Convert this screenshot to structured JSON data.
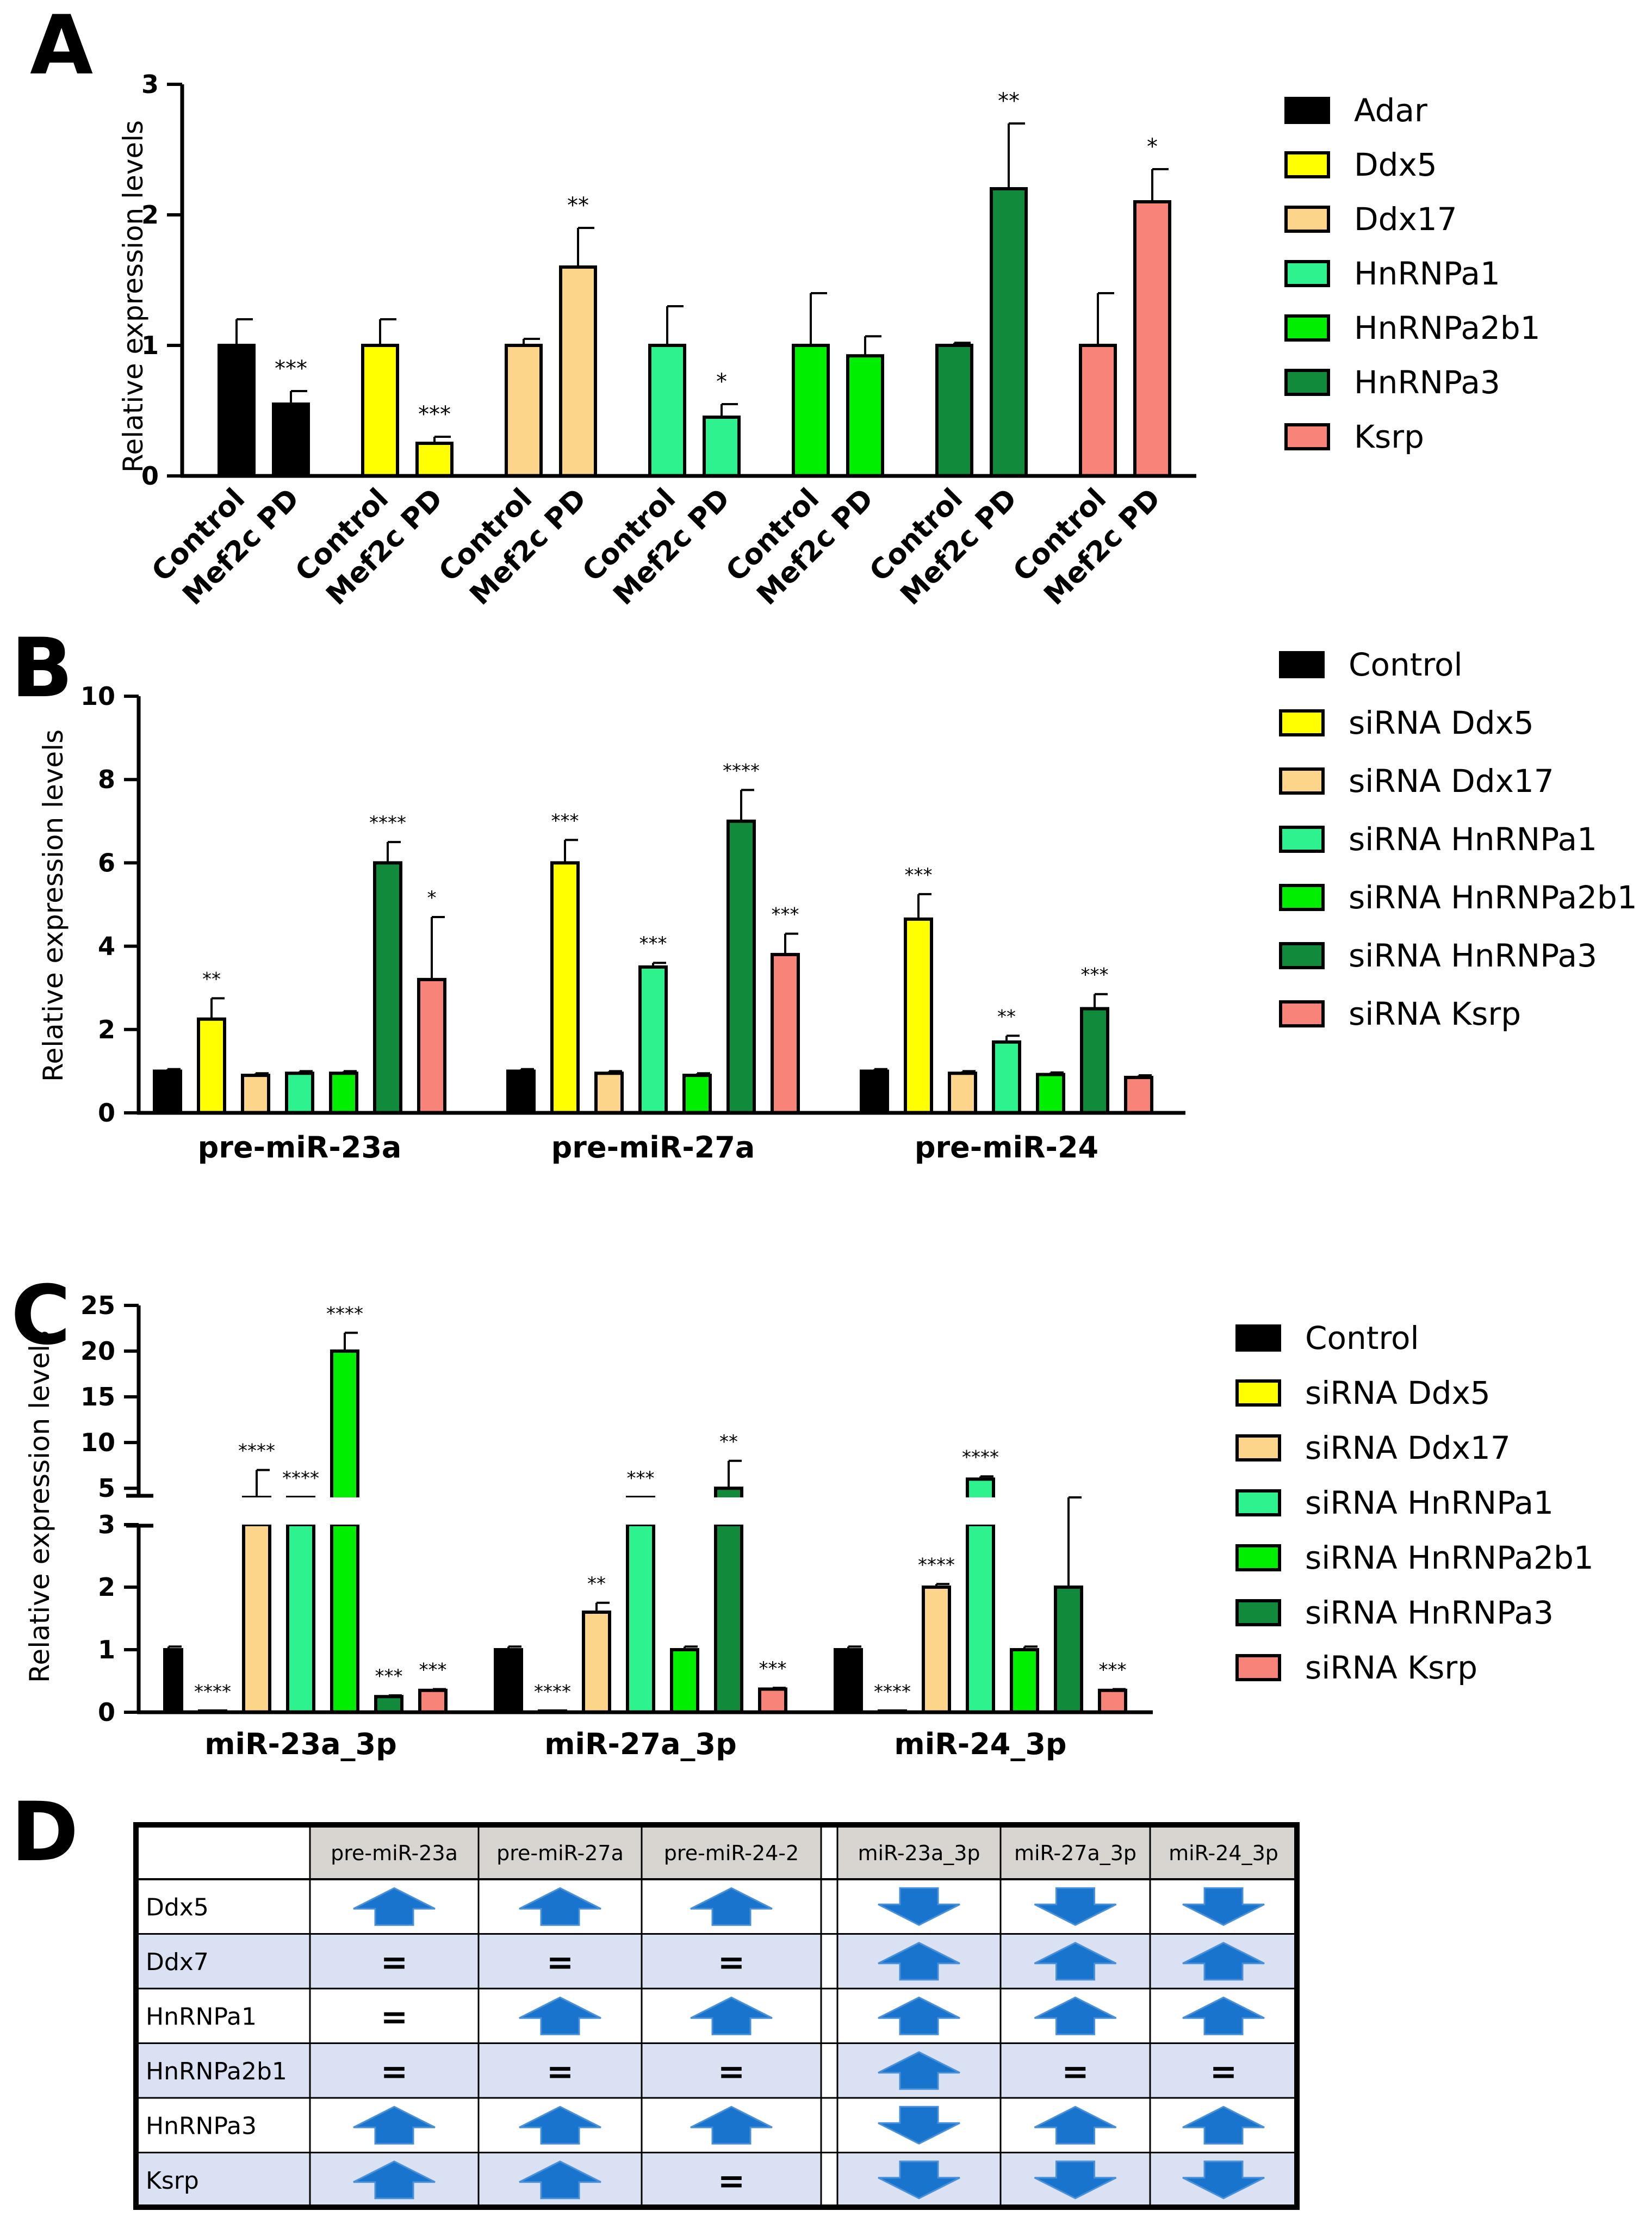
{
  "panels": {
    "a": "A",
    "b": "B",
    "c": "C",
    "d": "D"
  },
  "colors": {
    "Adar": "#000000",
    "Ddx5": "#ffff00",
    "Ddx17": "#fcd48a",
    "HnRNPa1": "#2ef28e",
    "HnRNPa2b1": "#00ee00",
    "HnRNPa3": "#118a3c",
    "Ksrp": "#f88379",
    "table_head": "#d8d4d0",
    "table_alt": "#d9e1f2",
    "arrow": "#1874cd"
  },
  "chart_data": [
    {
      "type": "bar",
      "panel": "A",
      "ylabel": "Relative expression levels",
      "ylim": [
        0,
        3
      ],
      "yticks": [
        "0",
        "1",
        "2",
        "3"
      ],
      "groups": [
        "Adar",
        "Ddx5",
        "Ddx17",
        "HnRNPa1",
        "HnRNPa2b1",
        "HnRNPa3",
        "Ksrp"
      ],
      "categories": [
        "Control",
        "Mef2c PD"
      ],
      "values": [
        [
          1.0,
          0.55
        ],
        [
          1.0,
          0.25
        ],
        [
          1.0,
          1.6
        ],
        [
          1.0,
          0.45
        ],
        [
          1.0,
          0.92
        ],
        [
          1.0,
          2.2
        ],
        [
          1.0,
          2.1
        ]
      ],
      "errors": [
        [
          0.2,
          0.1
        ],
        [
          0.2,
          0.05
        ],
        [
          0.05,
          0.3
        ],
        [
          0.3,
          0.1
        ],
        [
          0.4,
          0.15
        ],
        [
          0.02,
          0.5
        ],
        [
          0.4,
          0.25
        ]
      ],
      "significance": [
        [
          "",
          "***"
        ],
        [
          "",
          "***"
        ],
        [
          "",
          "**"
        ],
        [
          "",
          "*"
        ],
        [
          "",
          ""
        ],
        [
          "",
          "**"
        ],
        [
          "",
          "*"
        ]
      ],
      "legend": [
        "Adar",
        "Ddx5",
        "Ddx17",
        "HnRNPa1",
        "HnRNPa2b1",
        "HnRNPa3",
        "Ksrp"
      ],
      "legend_placement": "right"
    },
    {
      "type": "bar",
      "panel": "B",
      "ylabel": "Relative expression levels",
      "ylim": [
        0,
        10
      ],
      "yticks": [
        "0",
        "2",
        "4",
        "6",
        "8",
        "10"
      ],
      "categories": [
        "pre-miR-23a",
        "pre-miR-27a",
        "pre-miR-24"
      ],
      "series": [
        {
          "name": "Control",
          "values": [
            1.0,
            1.0,
            1.0
          ],
          "errors": [
            0.05,
            0.05,
            0.05
          ],
          "sig": [
            "",
            "",
            ""
          ]
        },
        {
          "name": "siRNA Ddx5",
          "values": [
            2.25,
            6.0,
            4.65
          ],
          "errors": [
            0.5,
            0.55,
            0.6
          ],
          "sig": [
            "**",
            "***",
            "***"
          ]
        },
        {
          "name": "siRNA Ddx17",
          "values": [
            0.9,
            0.95,
            0.95
          ],
          "errors": [
            0.05,
            0.05,
            0.05
          ],
          "sig": [
            "",
            "",
            ""
          ]
        },
        {
          "name": "siRNA HnRNPa1",
          "values": [
            0.95,
            3.5,
            1.7
          ],
          "errors": [
            0.05,
            0.1,
            0.15
          ],
          "sig": [
            "",
            "***",
            "**"
          ]
        },
        {
          "name": "siRNA HnRNPa2b1",
          "values": [
            0.95,
            0.9,
            0.92
          ],
          "errors": [
            0.05,
            0.05,
            0.05
          ],
          "sig": [
            "",
            "",
            ""
          ]
        },
        {
          "name": "siRNA HnRNPa3",
          "values": [
            6.0,
            7.0,
            2.5
          ],
          "errors": [
            0.5,
            0.75,
            0.35
          ],
          "sig": [
            "****",
            "****",
            "***"
          ]
        },
        {
          "name": "siRNA Ksrp",
          "values": [
            3.2,
            3.8,
            0.85
          ],
          "errors": [
            1.5,
            0.5,
            0.05
          ],
          "sig": [
            "*",
            "***",
            ""
          ]
        }
      ],
      "legend_placement": "right"
    },
    {
      "type": "bar",
      "panel": "C",
      "ylabel": "Relative expression levels",
      "y_axis_break": [
        3,
        4
      ],
      "ylim_lower": [
        0,
        3
      ],
      "ylim_upper": [
        4,
        25
      ],
      "yticks_lower": [
        "0",
        "1",
        "2",
        "3"
      ],
      "yticks_upper": [
        "5",
        "10",
        "15",
        "20",
        "25"
      ],
      "categories": [
        "miR-23a_3p",
        "miR-27a_3p",
        "miR-24_3p"
      ],
      "series": [
        {
          "name": "Control",
          "values": [
            1.0,
            1.0,
            1.0
          ],
          "errors": [
            0.05,
            0.05,
            0.05
          ],
          "sig": [
            "",
            "",
            ""
          ]
        },
        {
          "name": "siRNA Ddx5",
          "values": [
            0.02,
            0.02,
            0.02
          ],
          "errors": [
            0,
            0,
            0
          ],
          "sig": [
            "****",
            "****",
            "****"
          ]
        },
        {
          "name": "siRNA Ddx17",
          "values": [
            4.0,
            1.6,
            2.0
          ],
          "errors": [
            3.0,
            0.15,
            0.05
          ],
          "sig": [
            "****",
            "**",
            "****"
          ]
        },
        {
          "name": "siRNA HnRNPa1",
          "values": [
            4.0,
            4.0,
            6.0
          ],
          "errors": [
            0,
            0,
            0.3
          ],
          "sig": [
            "****",
            "***",
            "****"
          ]
        },
        {
          "name": "siRNA HnRNPa2b1",
          "values": [
            20.0,
            1.0,
            1.0
          ],
          "errors": [
            2.0,
            0.05,
            0.05
          ],
          "sig": [
            "****",
            "",
            ""
          ]
        },
        {
          "name": "siRNA HnRNPa3",
          "values": [
            0.25,
            5.0,
            2.0
          ],
          "errors": [
            0.02,
            3.0,
            2.0
          ],
          "sig": [
            "***",
            "**",
            ""
          ]
        },
        {
          "name": "siRNA Ksrp",
          "values": [
            0.35,
            0.37,
            0.35
          ],
          "errors": [
            0.02,
            0.02,
            0.02
          ],
          "sig": [
            "***",
            "***",
            "***"
          ]
        }
      ],
      "legend_placement": "right"
    },
    {
      "type": "table",
      "panel": "D",
      "columns": [
        "pre-miR-23a",
        "pre-miR-27a",
        "pre-miR-24-2",
        "miR-23a_3p",
        "miR-27a_3p",
        "miR-24_3p"
      ],
      "rows": [
        {
          "label": "Ddx5",
          "cells": [
            "up",
            "up",
            "up",
            "down",
            "down",
            "down"
          ]
        },
        {
          "label": "Ddx7",
          "cells": [
            "=",
            "=",
            "=",
            "up",
            "up",
            "up"
          ]
        },
        {
          "label": "HnRNPa1",
          "cells": [
            "=",
            "up",
            "up",
            "up",
            "up",
            "up"
          ]
        },
        {
          "label": "HnRNPa2b1",
          "cells": [
            "=",
            "=",
            "=",
            "up",
            "=",
            "="
          ]
        },
        {
          "label": "HnRNPa3",
          "cells": [
            "up",
            "up",
            "up",
            "down",
            "up",
            "up"
          ]
        },
        {
          "label": "Ksrp",
          "cells": [
            "up",
            "up",
            "=",
            "down",
            "down",
            "down"
          ]
        }
      ],
      "legend": [
        "up-arrow-icon",
        "down-arrow-icon"
      ]
    }
  ]
}
